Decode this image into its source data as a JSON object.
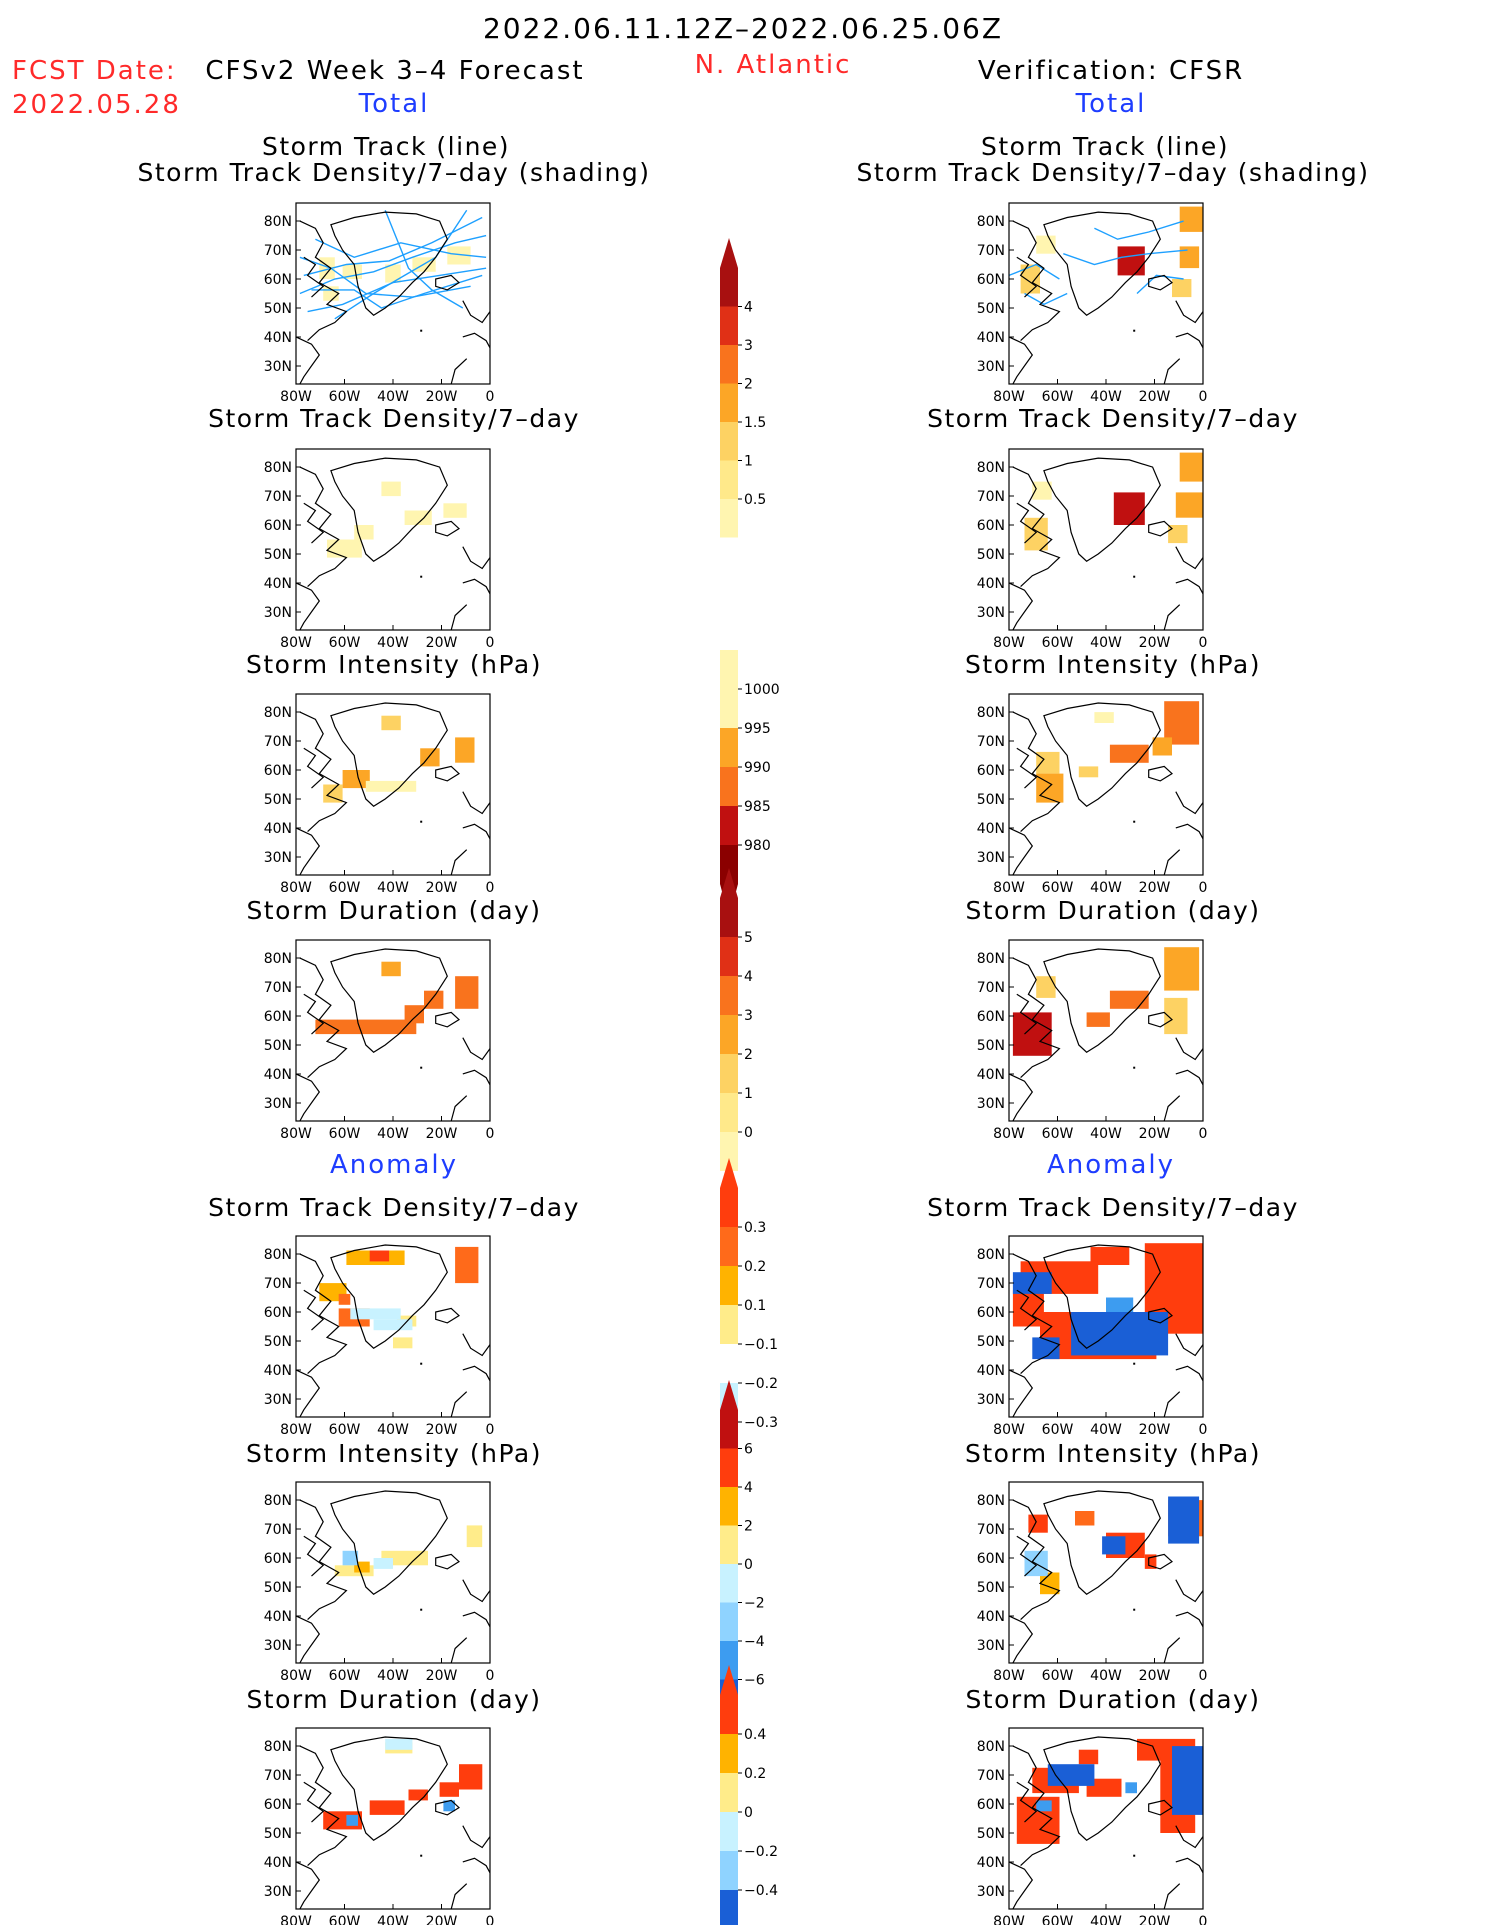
{
  "header": {
    "period": "2022.06.11.12Z–2022.06.25.06Z",
    "fcst_label": "FCST Date:",
    "fcst_date": "2022.05.28",
    "model": "CFSv2 Week 3–4 Forecast",
    "region": "N. Atlantic",
    "verification": "Verification: CFSR"
  },
  "sections": {
    "total": "Total",
    "anomaly": "Anomaly"
  },
  "panel_titles": {
    "track_line": "Storm Track (line)",
    "track_shading": "Storm Track Density/7–day (shading)",
    "density": "Storm Track Density/7–day",
    "intensity": "Storm Intensity (hPa)",
    "duration": "Storm Duration (day)"
  },
  "map_axes": {
    "lat_labels": [
      "80N",
      "70N",
      "60N",
      "50N",
      "40N",
      "30N"
    ],
    "lon_labels": [
      "80W",
      "60W",
      "40W",
      "20W",
      "0"
    ]
  },
  "colorbars": {
    "density_total": [
      "4",
      "3",
      "2",
      "1.5",
      "1",
      "0.5"
    ],
    "intensity_total": [
      "1000",
      "995",
      "990",
      "985",
      "980"
    ],
    "duration_total": [
      "5",
      "4",
      "3",
      "2",
      "1",
      "0"
    ],
    "density_anom": [
      "0.3",
      "0.2",
      "0.1",
      "−0.1",
      "−0.2",
      "−0.3"
    ],
    "intensity_anom": [
      "6",
      "4",
      "2",
      "0",
      "−2",
      "−4",
      "−6"
    ],
    "duration_anom": [
      "0.4",
      "0.2",
      "0",
      "−0.2",
      "−0.4"
    ]
  },
  "colors": {
    "title_red": "#ff2a2a",
    "label_blue": "#1e3dff",
    "track_blue": "#1ea0ff",
    "cb_total": [
      "#fff5b0",
      "#fdd263",
      "#fca626",
      "#f9731d",
      "#e53616",
      "#c01010",
      "#8b0000"
    ],
    "cb_anom_pos": [
      "#ffec8a",
      "#ffb300",
      "#ff6a1a",
      "#ff3d0d"
    ],
    "cb_anom_neg": [
      "#c8f2ff",
      "#8fd3ff",
      "#3d9cf0",
      "#1a5fd6"
    ]
  }
}
